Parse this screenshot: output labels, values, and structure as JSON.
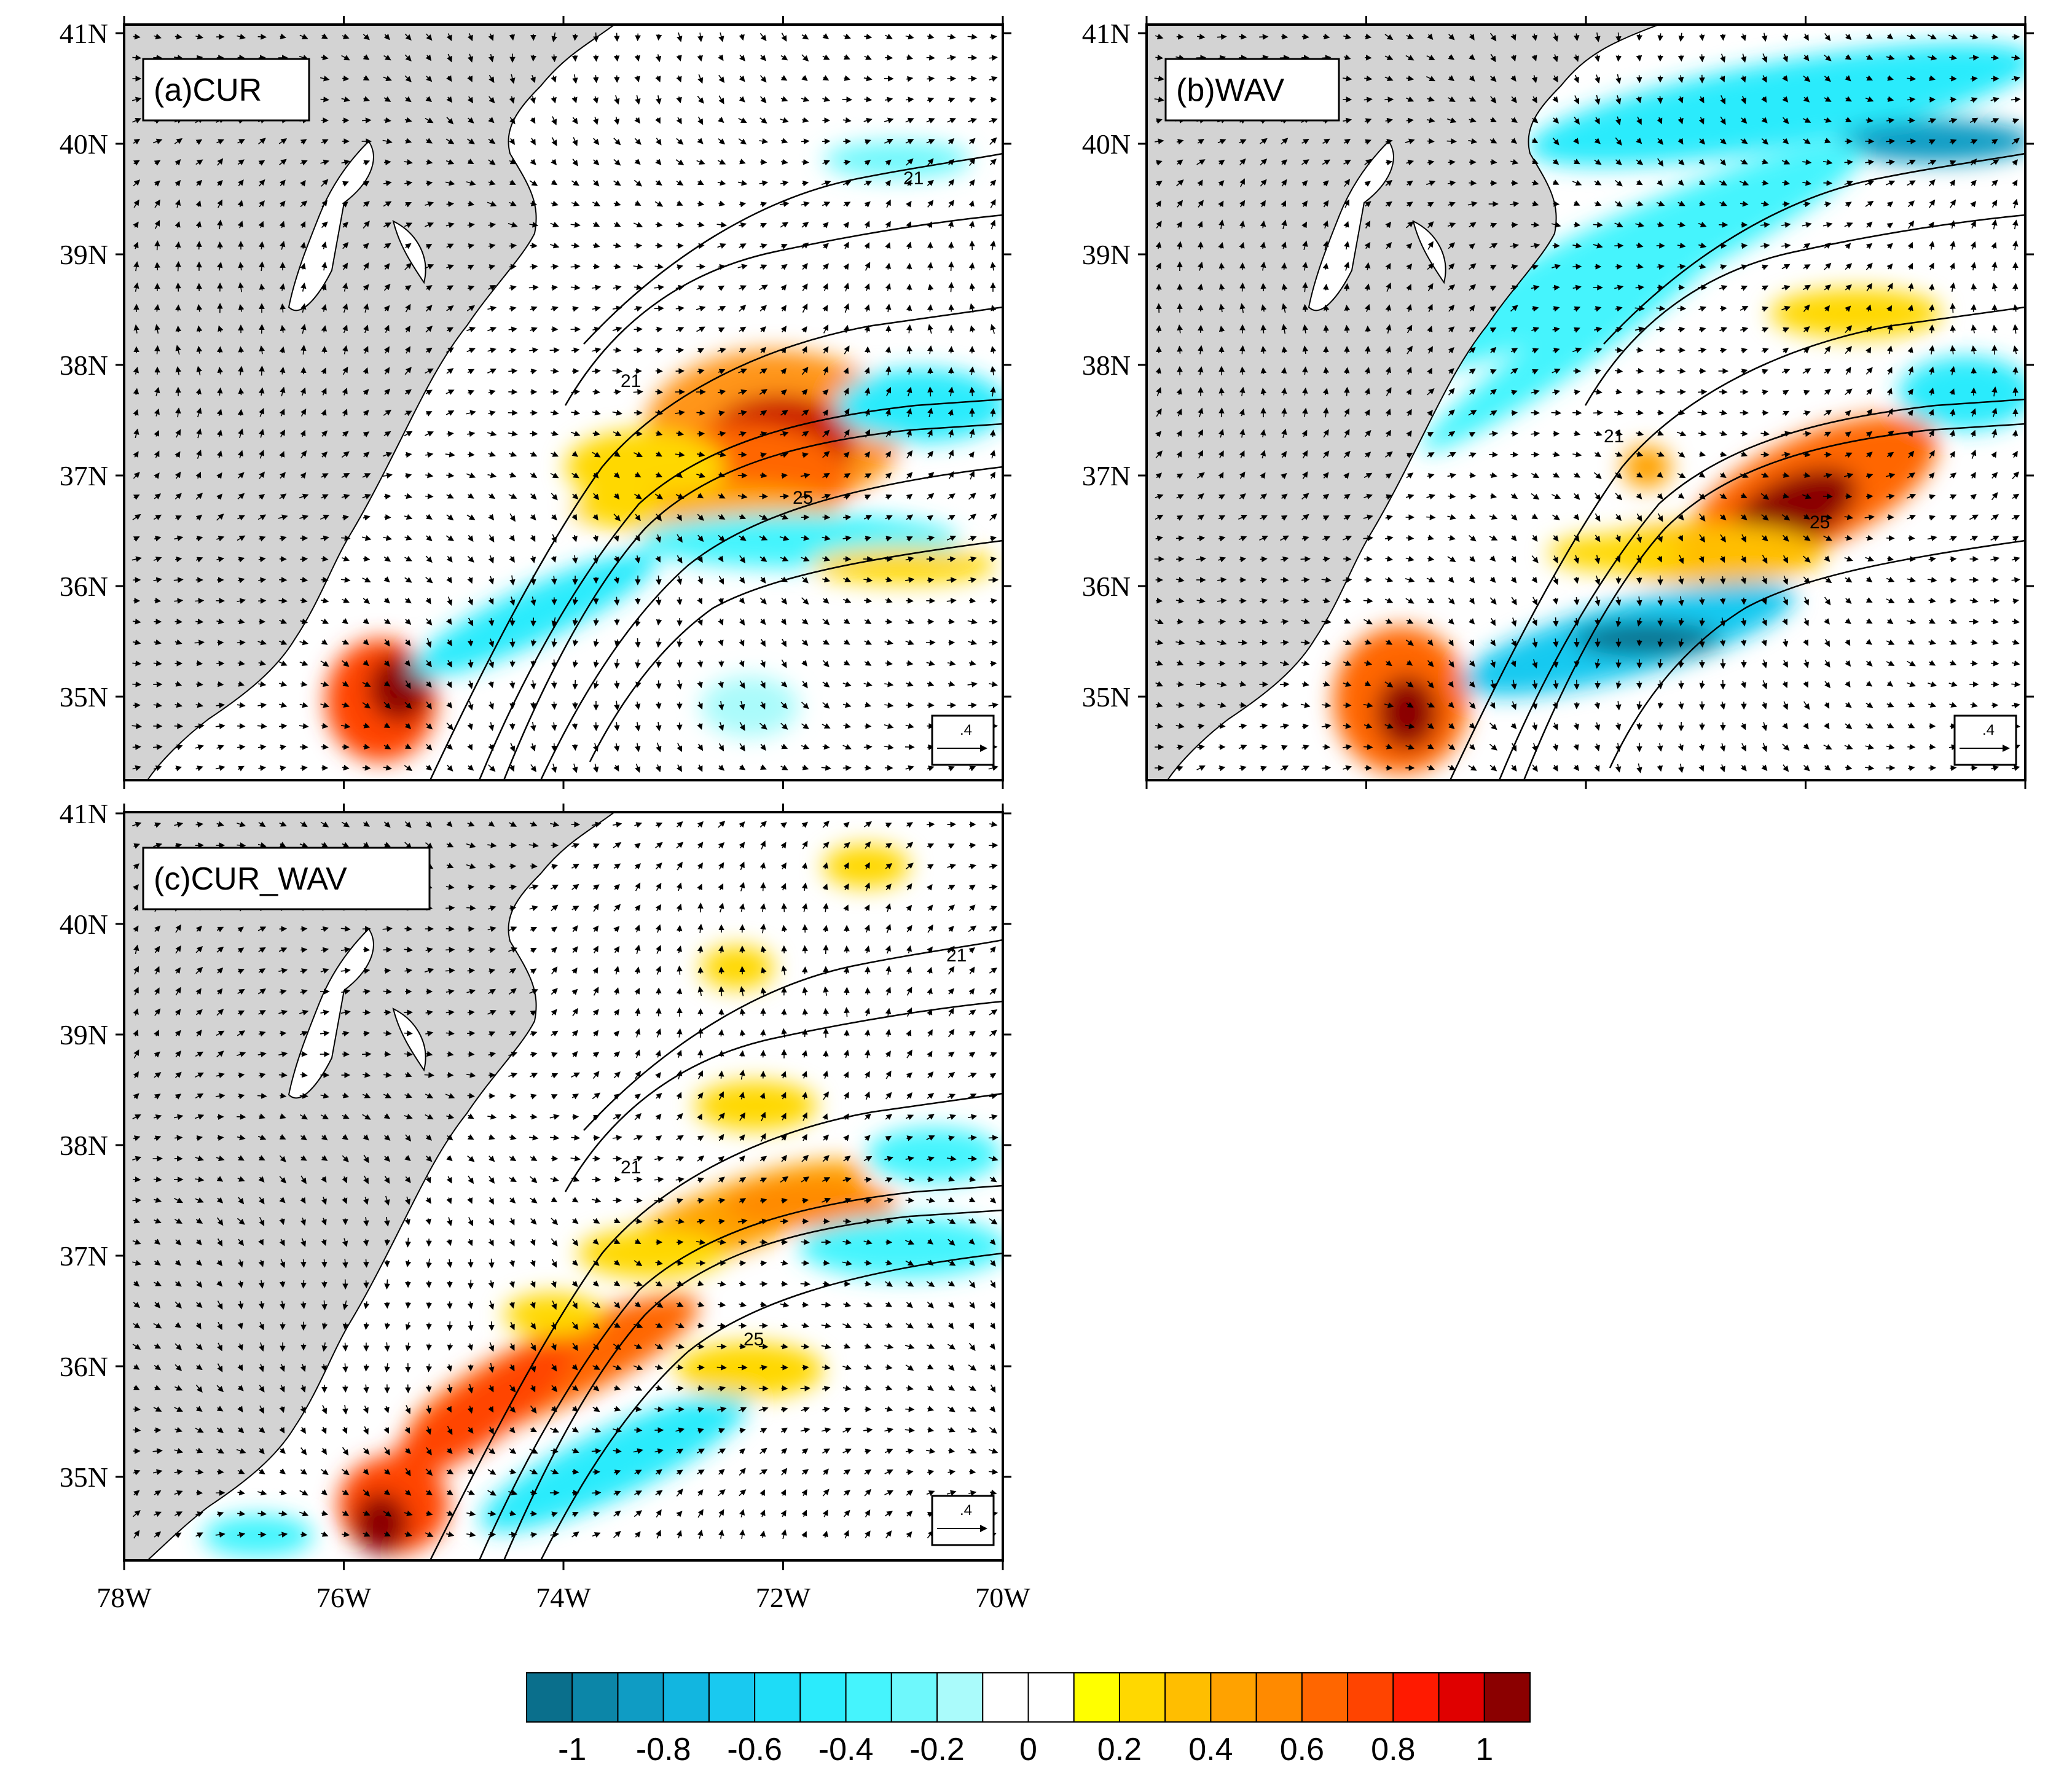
{
  "figure": {
    "lat_ticks": [
      "41N",
      "40N",
      "39N",
      "38N",
      "37N",
      "36N",
      "35N"
    ],
    "lon_ticks": [
      "78W",
      "76W",
      "74W",
      "72W",
      "70W"
    ],
    "lon_range_deg_w": [
      78,
      70
    ],
    "lat_range_deg_n": [
      34.2,
      41.0
    ],
    "reference_vector_label": ".4",
    "contour_labels": [
      "21",
      "25"
    ]
  },
  "panels": [
    {
      "id": "a",
      "label": "(a)CUR"
    },
    {
      "id": "b",
      "label": "(b)WAV"
    },
    {
      "id": "c",
      "label": "(c)CUR_WAV"
    }
  ],
  "colorbar": {
    "colors": [
      "#0a6f8c",
      "#0c86a8",
      "#0f9cc4",
      "#12b6e0",
      "#19c9f0",
      "#1edcf7",
      "#2bebfc",
      "#45f4fd",
      "#6ef8fc",
      "#aafbfb",
      "#ffffff",
      "#ffffff",
      "#ffff00",
      "#ffd800",
      "#ffbe00",
      "#ffa200",
      "#ff8a00",
      "#ff6600",
      "#ff4400",
      "#ff1a00",
      "#e00000",
      "#8b0000"
    ],
    "tick_labels": [
      "-1",
      "-0.8",
      "-0.6",
      "-0.4",
      "-0.2",
      "0",
      "0.2",
      "0.4",
      "0.6",
      "0.8",
      "1"
    ],
    "tick_values": [
      -1,
      -0.8,
      -0.6,
      -0.4,
      -0.2,
      0,
      0.2,
      0.4,
      0.6,
      0.8,
      1
    ],
    "range": [
      -1.1,
      1.1
    ]
  },
  "colors": {
    "land": "#d3d3d3",
    "ocean": "#ffffff",
    "coast": "#000000"
  }
}
